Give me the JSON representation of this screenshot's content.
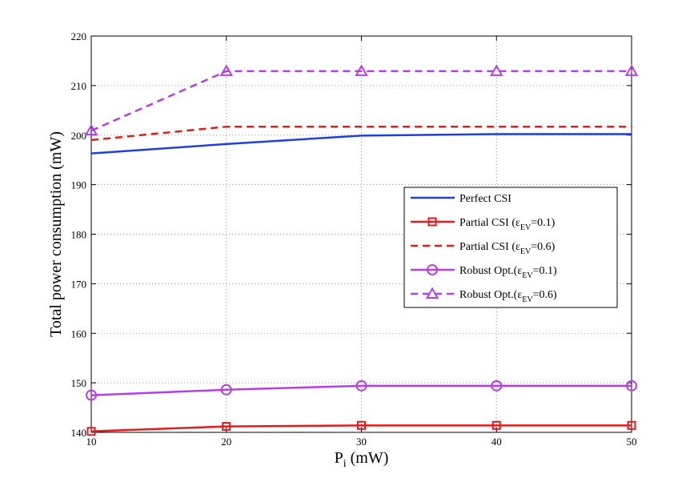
{
  "chart_data": {
    "type": "line",
    "title": "",
    "xlabel": "P",
    "xlabel_sub": "i",
    "xlabel_unit": " (mW)",
    "ylabel": "Total power consumption (mW)",
    "xlim": [
      10,
      50
    ],
    "ylim": [
      140,
      220
    ],
    "x_ticks": [
      10,
      20,
      30,
      40,
      50
    ],
    "y_ticks": [
      140,
      150,
      160,
      170,
      180,
      190,
      200,
      210,
      220
    ],
    "grid": true,
    "legend_position": "center-right",
    "x": [
      10,
      20,
      30,
      40,
      50
    ],
    "series": [
      {
        "name": "Perfect CSI",
        "label_main": "Perfect CSI",
        "label_sub": "",
        "label_tail": "",
        "values": [
          196.3,
          198.2,
          199.9,
          200.2,
          200.2
        ],
        "color": "#1f3fde",
        "dash": "solid",
        "marker": "none"
      },
      {
        "name": "Partial CSI (εEV=0.1)",
        "label_main": "Partial CSI (ε",
        "label_sub": "EV",
        "label_tail": "=0.1)",
        "values": [
          140.2,
          141.2,
          141.4,
          141.4,
          141.4
        ],
        "color": "#e21b1b",
        "dash": "solid",
        "marker": "square"
      },
      {
        "name": "Partial CSI (εEV=0.6)",
        "label_main": "Partial CSI (ε",
        "label_sub": "EV",
        "label_tail": "=0.6)",
        "values": [
          199.0,
          201.7,
          201.7,
          201.7,
          201.7
        ],
        "color": "#e21b1b",
        "dash": "dashed",
        "marker": "none"
      },
      {
        "name": "Robust Opt.(εEV=0.1)",
        "label_main": "Robust Opt.(ε",
        "label_sub": "EV",
        "label_tail": "=0.1)",
        "values": [
          147.5,
          148.6,
          149.4,
          149.4,
          149.4
        ],
        "color": "#b43ee8",
        "dash": "solid",
        "marker": "circle"
      },
      {
        "name": "Robust Opt.(εEV=0.6)",
        "label_main": "Robust Opt.(ε",
        "label_sub": "EV",
        "label_tail": "=0.6)",
        "values": [
          200.9,
          212.9,
          212.9,
          212.9,
          212.9
        ],
        "color": "#b43ee8",
        "dash": "dashed",
        "marker": "triangle"
      }
    ]
  }
}
